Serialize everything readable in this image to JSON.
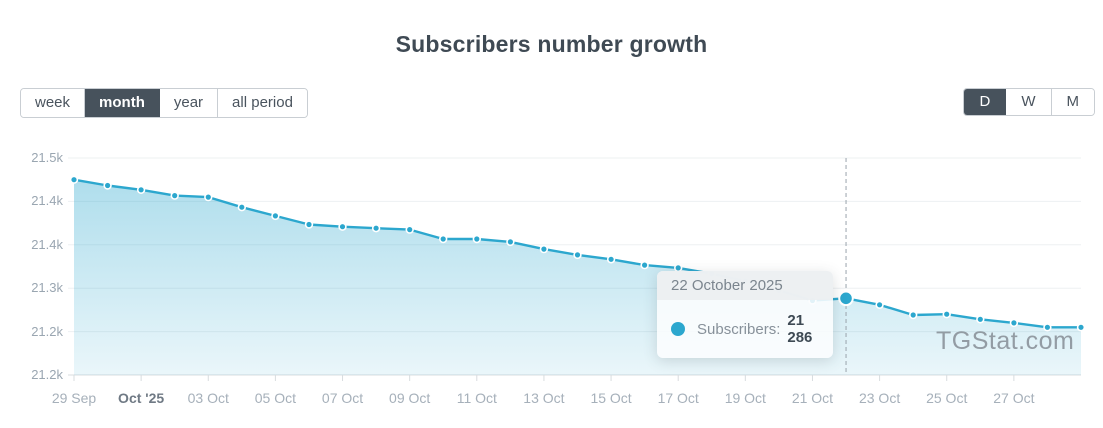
{
  "title": "Subscribers number growth",
  "watermark": "TGStat.com",
  "period_tabs": {
    "items": [
      {
        "label": "week",
        "active": false
      },
      {
        "label": "month",
        "active": true
      },
      {
        "label": "year",
        "active": false
      },
      {
        "label": "all period",
        "active": false
      }
    ]
  },
  "resolution_tabs": {
    "items": [
      {
        "label": "D",
        "active": true
      },
      {
        "label": "W",
        "active": false
      },
      {
        "label": "M",
        "active": false
      }
    ]
  },
  "tooltip": {
    "date": "22 October 2025",
    "series_label": "Subscribers:",
    "value": "21 286"
  },
  "colors": {
    "accent": "#2ca7ce",
    "tab_active_bg": "#47525c",
    "tab_text": "#4a545e",
    "title_text": "#3f4a54",
    "grid_line": "#edf0f2",
    "axis_line": "#d8dcdf",
    "x_label": "#a6b0ba",
    "x_label_strong": "#6f7984",
    "y_label": "#9aa6b1",
    "watermark_text": "#8b939b",
    "crosshair": "#9aa4ac"
  },
  "chart_data": {
    "type": "area",
    "title": "Subscribers number growth",
    "x": [
      "29 Sep",
      "30 Sep",
      "01 Oct",
      "02 Oct",
      "03 Oct",
      "04 Oct",
      "05 Oct",
      "06 Oct",
      "07 Oct",
      "08 Oct",
      "09 Oct",
      "10 Oct",
      "11 Oct",
      "12 Oct",
      "13 Oct",
      "14 Oct",
      "15 Oct",
      "16 Oct",
      "17 Oct",
      "18 Oct",
      "19 Oct",
      "20 Oct",
      "21 Oct",
      "22 Oct",
      "23 Oct",
      "24 Oct",
      "25 Oct",
      "26 Oct",
      "27 Oct",
      "28 Oct",
      "29 Oct"
    ],
    "series": [
      {
        "name": "Subscribers",
        "values": [
          21450,
          21442,
          21436,
          21428,
          21426,
          21412,
          21400,
          21388,
          21385,
          21383,
          21381,
          21368,
          21368,
          21364,
          21354,
          21346,
          21340,
          21332,
          21328,
          21320,
          21310,
          21297,
          21283,
          21286,
          21277,
          21263,
          21264,
          21257,
          21252,
          21246,
          21246
        ]
      }
    ],
    "x_tick_labels": [
      {
        "label": "29 Sep",
        "strong": false
      },
      {
        "label": "Oct '25",
        "strong": true
      },
      {
        "label": "03 Oct",
        "strong": false
      },
      {
        "label": "05 Oct",
        "strong": false
      },
      {
        "label": "07 Oct",
        "strong": false
      },
      {
        "label": "09 Oct",
        "strong": false
      },
      {
        "label": "11 Oct",
        "strong": false
      },
      {
        "label": "13 Oct",
        "strong": false
      },
      {
        "label": "15 Oct",
        "strong": false
      },
      {
        "label": "17 Oct",
        "strong": false
      },
      {
        "label": "19 Oct",
        "strong": false
      },
      {
        "label": "21 Oct",
        "strong": false
      },
      {
        "label": "23 Oct",
        "strong": false
      },
      {
        "label": "25 Oct",
        "strong": false
      },
      {
        "label": "27 Oct",
        "strong": false
      }
    ],
    "y_tick_labels": [
      "21.5k",
      "21.4k",
      "21.4k",
      "21.3k",
      "21.2k",
      "21.2k"
    ],
    "ylim": [
      21180,
      21480
    ],
    "grid": "horizontal",
    "legend": "none",
    "highlight": {
      "index": 23,
      "date": "22 October 2025",
      "value": 21286
    }
  }
}
